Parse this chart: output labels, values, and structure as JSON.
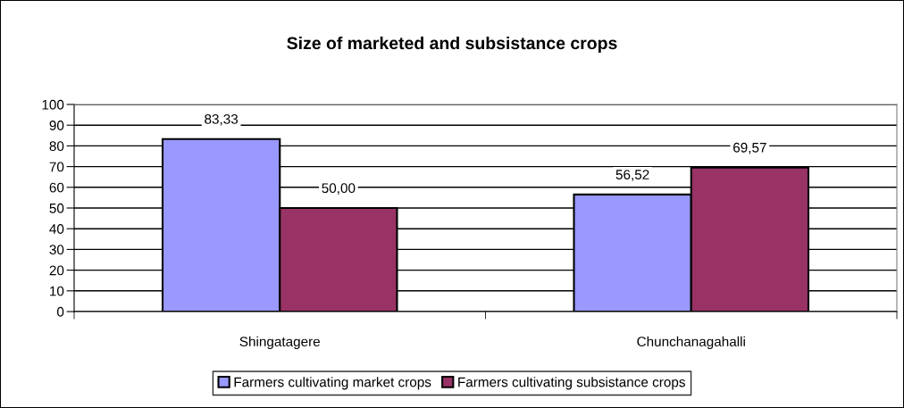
{
  "chart_data": {
    "type": "bar",
    "title": "Size of marketed and subsistance crops",
    "categories": [
      "Shingatagere",
      "Chunchanagahalli"
    ],
    "series": [
      {
        "name": "Farmers cultivating market crops",
        "color": "#9999ff",
        "values": [
          83.33,
          56.52
        ],
        "value_labels": [
          "83,33",
          "56,52"
        ]
      },
      {
        "name": "Farmers cultivating subsistance crops",
        "color": "#993366",
        "values": [
          50.0,
          69.57
        ],
        "value_labels": [
          "50,00",
          "69,57"
        ]
      }
    ],
    "ylim": [
      0,
      100
    ],
    "yticks": [
      0,
      10,
      20,
      30,
      40,
      50,
      60,
      70,
      80,
      90,
      100
    ],
    "grid": "y",
    "legend": "bottom"
  }
}
